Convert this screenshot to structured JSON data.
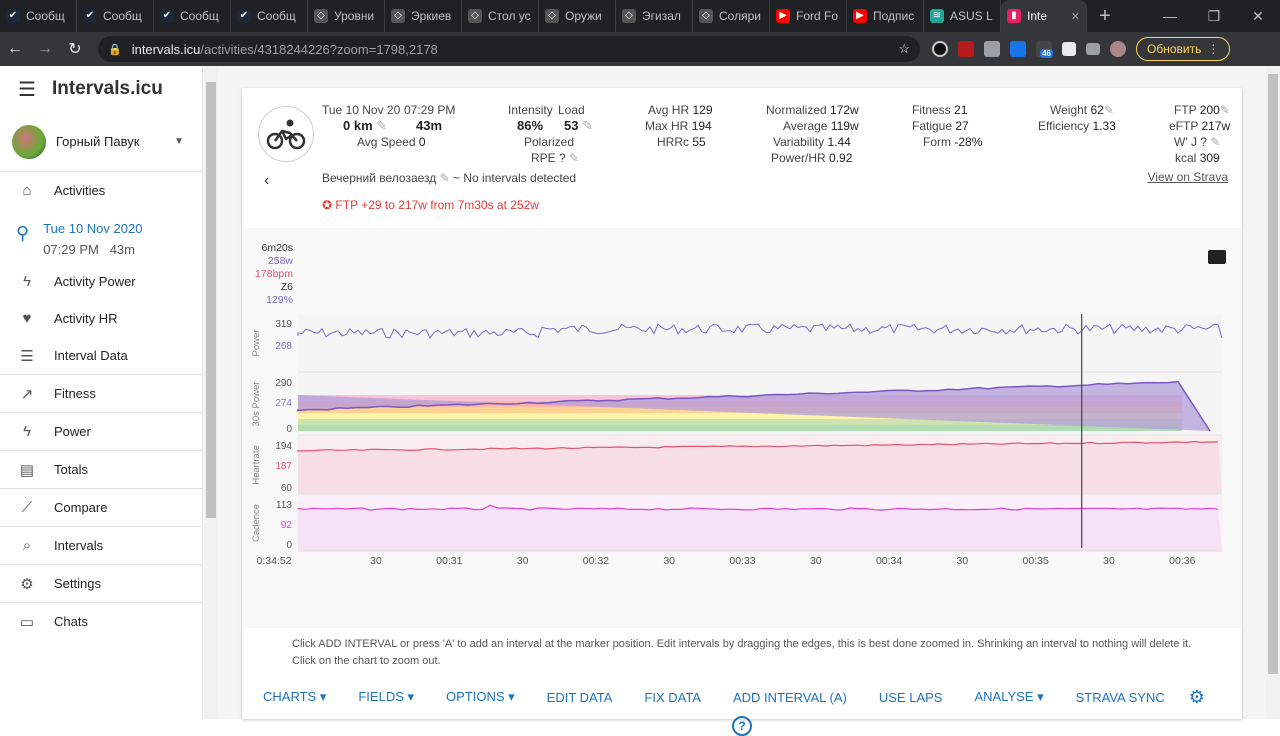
{
  "browser": {
    "tabs": [
      {
        "label": "Сообщ",
        "icon": "steam-icon"
      },
      {
        "label": "Сообщ",
        "icon": "steam-icon"
      },
      {
        "label": "Сообщ",
        "icon": "steam-icon"
      },
      {
        "label": "Сообщ",
        "icon": "steam-icon"
      },
      {
        "label": "Уровни",
        "icon": "game-icon"
      },
      {
        "label": "Эркиев",
        "icon": "game-icon"
      },
      {
        "label": "Стол ус",
        "icon": "game-icon"
      },
      {
        "label": "Оружи",
        "icon": "game-icon"
      },
      {
        "label": "Эгизал",
        "icon": "game-icon"
      },
      {
        "label": "Соляри",
        "icon": "game-icon"
      },
      {
        "label": "Ford Fo",
        "icon": "youtube-icon"
      },
      {
        "label": "Подпис",
        "icon": "youtube-icon"
      },
      {
        "label": "ASUS L",
        "icon": "wifi-icon"
      },
      {
        "label": "Inte",
        "icon": "intervals-icon"
      }
    ],
    "url_host": "intervals.icu",
    "url_path": "/activities/4318244226?zoom=1798,2178",
    "update_label": "Обновить",
    "ext_badge": "46"
  },
  "sidebar": {
    "brand": "Intervals.icu",
    "user": "Горный Павук",
    "activity_date": "Tue 10 Nov 2020",
    "activity_time": "07:29 PM",
    "activity_dur": "43m",
    "items": [
      {
        "label": "Activities",
        "icon": "home-icon"
      },
      {
        "label": "Activity Power",
        "icon": "bolt-icon"
      },
      {
        "label": "Activity HR",
        "icon": "heart-icon"
      },
      {
        "label": "Interval Data",
        "icon": "list-icon"
      },
      {
        "label": "Fitness",
        "icon": "trend-icon"
      },
      {
        "label": "Power",
        "icon": "bolt-icon"
      },
      {
        "label": "Totals",
        "icon": "totals-icon"
      },
      {
        "label": "Compare",
        "icon": "compare-icon"
      },
      {
        "label": "Intervals",
        "icon": "search-icon"
      },
      {
        "label": "Settings",
        "icon": "gear-icon"
      },
      {
        "label": "Chats",
        "icon": "chat-icon"
      }
    ]
  },
  "activity": {
    "date": "Tue 10 Nov 20",
    "time": "07:29 PM",
    "distance": "0 km",
    "duration": "43m",
    "avg_speed_label": "Avg Speed",
    "avg_speed": "0",
    "intensity_label": "Intensity",
    "intensity": "86%",
    "load_label": "Load",
    "load": "53",
    "polarized_label": "Polarized",
    "rpe_label": "RPE ?",
    "avg_hr_label": "Avg HR",
    "avg_hr": "129",
    "max_hr_label": "Max HR",
    "max_hr": "194",
    "hrrc_label": "HRRc",
    "hrrc": "55",
    "normalized_label": "Normalized",
    "normalized": "172w",
    "average_label": "Average",
    "average": "119w",
    "variability_label": "Variability",
    "variability": "1.44",
    "power_hr_label": "Power/HR",
    "power_hr": "0.92",
    "fitness_label": "Fitness",
    "fitness": "21",
    "fatigue_label": "Fatigue",
    "fatigue": "27",
    "form_label": "Form",
    "form": "-28%",
    "weight_label": "Weight",
    "weight": "62",
    "efficiency_label": "Efficiency",
    "efficiency": "1.33",
    "ftp_label": "FTP",
    "ftp": "200",
    "eftp_label": "eFTP",
    "eftp": "217w",
    "wj_label": "W' J ?",
    "kcal_label": "kcal",
    "kcal": "309",
    "name": "Вечерний велозаезд",
    "no_intervals": "~ No intervals detected",
    "ftp_alert": "FTP +29 to 217w from 7m30s at 252w",
    "strava_link": "View on Strava"
  },
  "chart_data": {
    "type": "line",
    "marker_readout": {
      "time": "6m20s",
      "power": "258w",
      "hr": "178bpm",
      "zone": "Z6",
      "pct": "129%"
    },
    "panels": [
      {
        "name": "Power",
        "ticks": [
          "319",
          "268"
        ],
        "color": "#7b68c9"
      },
      {
        "name": "30s Power",
        "ticks": [
          "290",
          "274",
          "0"
        ],
        "color": "#8a70d6"
      },
      {
        "name": "Heartrate",
        "ticks": [
          "194",
          "187",
          "60"
        ],
        "color": "#e05570"
      },
      {
        "name": "Cadence",
        "ticks": [
          "113",
          "92",
          "0"
        ],
        "color": "#e040d0"
      }
    ],
    "x_ticks": [
      "0:34:52",
      "30",
      "00:31",
      "30",
      "00:32",
      "30",
      "00:33",
      "30",
      "00:34",
      "30",
      "00:35",
      "30",
      "00:36"
    ],
    "marker_tick_index": 10
  },
  "footer": {
    "note1": "Click ADD INTERVAL or press 'A' to add an interval at the marker position. Edit intervals by dragging the edges, this is best done zoomed in. Shrinking an interval to nothing will delete it.",
    "note2": "Click on the chart to zoom out."
  },
  "toolbar": {
    "charts": "CHARTS",
    "fields": "FIELDS",
    "options": "OPTIONS",
    "edit_data": "EDIT DATA",
    "fix_data": "FIX DATA",
    "add_interval": "ADD INTERVAL (A)",
    "use_laps": "USE LAPS",
    "analyse": "ANALYSE",
    "strava_sync": "STRAVA SYNC",
    "help": "?"
  }
}
